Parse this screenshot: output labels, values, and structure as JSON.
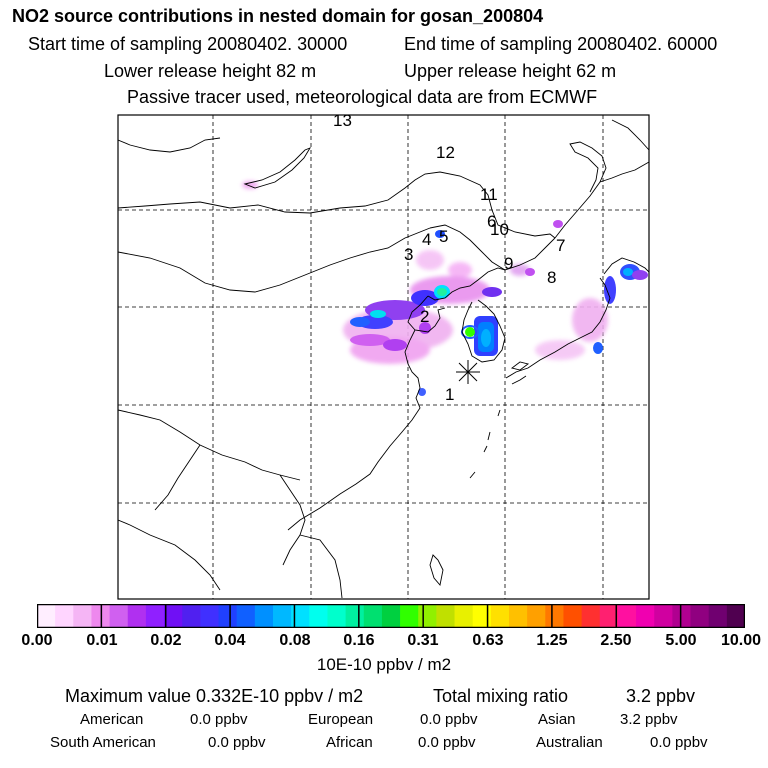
{
  "header": {
    "title": "NO2 source contributions in nested domain for gosan_200804",
    "start_label": "Start time of sampling 20080402. 30000",
    "end_label": "End time of sampling 20080402. 60000",
    "lower_release": "Lower release height   82 m",
    "upper_release": "Upper release height   62 m",
    "tracer_note": "Passive tracer used, meteorological data are from ECMWF"
  },
  "map": {
    "region_numbers": [
      "1",
      "2",
      "3",
      "4",
      "5",
      "6",
      "7",
      "8",
      "9",
      "10",
      "11",
      "12",
      "13"
    ],
    "receptor_marker": "star-receptor"
  },
  "colorbar": {
    "tick_labels": [
      "0.00",
      "0.01",
      "0.02",
      "0.04",
      "0.08",
      "0.16",
      "0.31",
      "0.63",
      "1.25",
      "2.50",
      "5.00",
      "10.00"
    ],
    "unit": "10E-10 ppbv / m2",
    "colors": [
      "#ffeeff",
      "#ffd5ff",
      "#f5b5f5",
      "#ee88ee",
      "#d060f0",
      "#b030f0",
      "#9020ff",
      "#7010f5",
      "#5020f0",
      "#4030ff",
      "#2040ff",
      "#1060ff",
      "#0090ff",
      "#00b8ff",
      "#00e0ff",
      "#00ffee",
      "#00ffcc",
      "#00f0a0",
      "#00e070",
      "#00d040",
      "#30ff00",
      "#90f000",
      "#c0e000",
      "#e8f000",
      "#ffff00",
      "#ffe000",
      "#ffc000",
      "#ffa000",
      "#ff7800",
      "#ff5000",
      "#ff3030",
      "#ff2070",
      "#ff10a0",
      "#f000b0",
      "#d000a0",
      "#b00090",
      "#900080",
      "#700070",
      "#500050"
    ]
  },
  "footer": {
    "max_value": "Maximum value  0.332E-10 ppbv / m2",
    "total_mixing": "Total mixing ratio",
    "total_value": "3.2 ppbv",
    "american_label": "American",
    "american_value": "0.0 ppbv",
    "european_label": "European",
    "european_value": "0.0 ppbv",
    "asian_label": "Asian",
    "asian_value": "3.2 ppbv",
    "south_american_label": "South American",
    "south_american_value": "0.0 ppbv",
    "african_label": "African",
    "african_value": "0.0 ppbv",
    "australian_label": "Australian",
    "australian_value": "0.0 ppbv"
  }
}
